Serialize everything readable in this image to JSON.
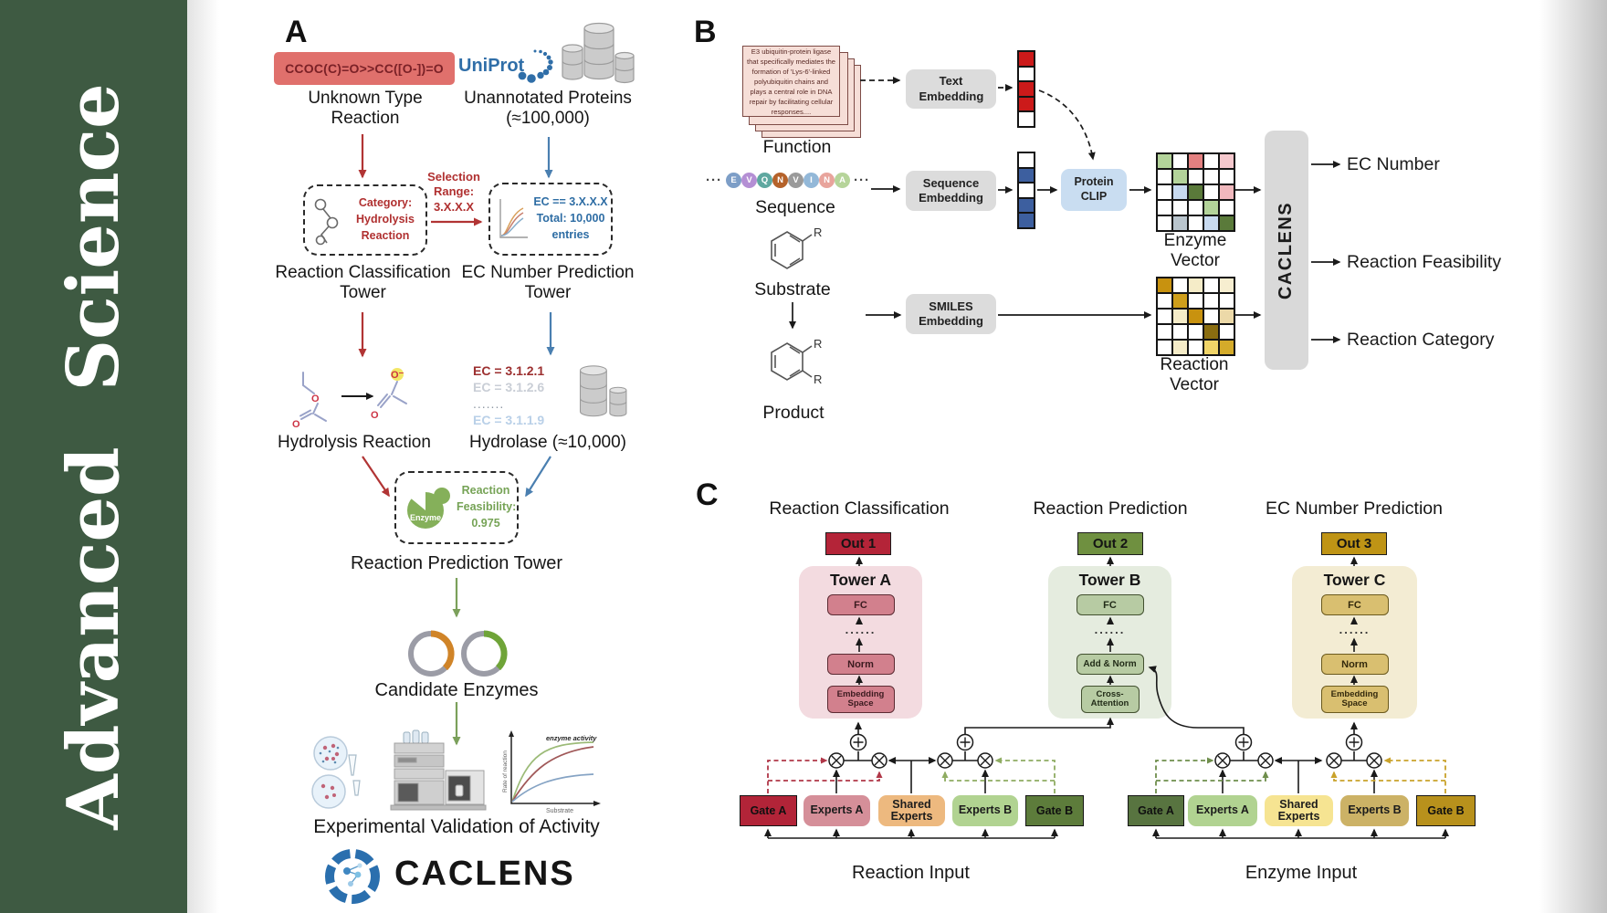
{
  "journal": {
    "name": "Advanced Science"
  },
  "panelA": {
    "label": "A",
    "smiles": "CCOC(C)=O>>CC([O-])=O",
    "unknown_reaction": "Unknown Type Reaction",
    "uniprot": "UniProt",
    "unannotated": "Unannotated Proteins (≈100,000)",
    "category_box": "Category: Hydrolysis Reaction",
    "selection": "Selection Range: 3.X.X.X",
    "ec_box_line1": "EC == 3.X.X.X",
    "ec_box_line2": "Total: 10,000",
    "ec_box_line3": "entries",
    "classification_tower": "Reaction Classification Tower",
    "prediction_tower": "EC Number Prediction Tower",
    "hydrolysis": "Hydrolysis Reaction",
    "ec_list": [
      "EC = 3.1.2.1",
      "EC = 3.1.2.6",
      ".......",
      "EC = 3.1.1.9"
    ],
    "hydrolase": "Hydrolase (≈10,000)",
    "enzyme": "Enzyme",
    "feasibility": "Reaction Feasibility: 0.975",
    "reaction_prediction_tower": "Reaction Prediction Tower",
    "candidate_enzymes": "Candidate Enzymes",
    "validation": "Experimental Validation of Activity",
    "brand": "CACLENS",
    "kinetics": {
      "annotation": "enzyme activity",
      "ylabel": "Rate of reaction",
      "xlabel": "Substrate"
    }
  },
  "panelB": {
    "label": "B",
    "function_card": "E3 ubiquitin-protein ligase that specifically mediates the formation of 'Lys-6'-linked polyubiquitin chains and plays a central role in DNA repair by facilitating cellular responses....",
    "function": "Function",
    "sequence_label": "Sequence",
    "dots": "···",
    "sequence": [
      {
        "letter": "E",
        "color": "#7d9ec7"
      },
      {
        "letter": "V",
        "color": "#b48fd4"
      },
      {
        "letter": "Q",
        "color": "#5fa8a0"
      },
      {
        "letter": "N",
        "color": "#b5622a"
      },
      {
        "letter": "V",
        "color": "#9a9a9a"
      },
      {
        "letter": "I",
        "color": "#93b8d8"
      },
      {
        "letter": "N",
        "color": "#e8a49c"
      },
      {
        "letter": "A",
        "color": "#b6d49a"
      }
    ],
    "text_embedding": "Text Embedding",
    "sequence_embedding": "Sequence Embedding",
    "smiles_embedding": "SMILES Embedding",
    "protein_clip": "Protein CLIP",
    "substrate": "Substrate",
    "product": "Product",
    "r_group": "R",
    "enzyme_vector_label": "Enzyme Vector",
    "reaction_vector_label": "Reaction Vector",
    "caclens_bar": "CACLENS",
    "outputs": [
      "EC Number",
      "Reaction Feasibility",
      "Reaction Category"
    ],
    "text_vector": [
      "#cc1a1a",
      "#ffffff",
      "#cc1a1a",
      "#cc1a1a",
      "#ffffff"
    ],
    "sequence_vector": [
      "#ffffff",
      "#3d5f9f",
      "#ffffff",
      "#3d5f9f",
      "#3d5f9f"
    ],
    "enzyme_vector": [
      [
        "#b3d39a",
        "#ffffff",
        "#e38080",
        "#ffffff",
        "#f5c8cd"
      ],
      [
        "#ffffff",
        "#b3d39a",
        "#ffffff",
        "#ffffff",
        "#ffffff"
      ],
      [
        "#ffffff",
        "#c8daf0",
        "#5a7a3a",
        "#ffffff",
        "#f0b8bd"
      ],
      [
        "#ffffff",
        "#ffffff",
        "#ffffff",
        "#b3d39a",
        "#ffffff"
      ],
      [
        "#ffffff",
        "#b9c5cd",
        "#ffffff",
        "#c8daf0",
        "#5a7a3a"
      ]
    ],
    "reaction_vector": [
      [
        "#c8920f",
        "#ffffff",
        "#f5ecc8",
        "#ffffff",
        "#f7eed0"
      ],
      [
        "#ffffff",
        "#cf9f1b",
        "#ffffff",
        "#ffffff",
        "#ffffff"
      ],
      [
        "#ffffff",
        "#f5ecc8",
        "#c8920f",
        "#ffffff",
        "#ecd9a8"
      ],
      [
        "#ffffff",
        "#ffffff",
        "#ffffff",
        "#8a6d10",
        "#ffffff"
      ],
      [
        "#ffffff",
        "#f5ecc8",
        "#ffffff",
        "#f0d468",
        "#d4ab2a"
      ]
    ]
  },
  "panelC": {
    "label": "C",
    "headings": [
      "Reaction Classification",
      "Reaction Prediction",
      "EC Number Prediction"
    ],
    "outs": [
      "Out 1",
      "Out 2",
      "Out 3"
    ],
    "towers": [
      {
        "title": "Tower A",
        "fc": "FC",
        "dots": "......",
        "norm": "Norm",
        "bottom": "Embedding Space"
      },
      {
        "title": "Tower B",
        "fc": "FC",
        "dots": "......",
        "norm": "Add & Norm",
        "bottom": "Cross-Attention"
      },
      {
        "title": "Tower C",
        "fc": "FC",
        "dots": "......",
        "norm": "Norm",
        "bottom": "Embedding Space"
      }
    ],
    "groups": [
      {
        "label": "Reaction Input",
        "gate_a": "Gate A",
        "experts_a": "Experts A",
        "shared": "Shared Experts",
        "experts_b": "Experts B",
        "gate_b": "Gate B"
      },
      {
        "label": "Enzyme Input",
        "gate_a": "Gate A",
        "experts_a": "Experts A",
        "shared": "Shared Experts",
        "experts_b": "Experts B",
        "gate_b": "Gate B"
      }
    ]
  },
  "colors": {
    "sidebar_green": "#3e5a42",
    "smiles_red_bg": "#e0706c",
    "accent_red": "#b13434",
    "accent_blue": "#4a7fb0",
    "accent_green": "#7ba05b",
    "out1_red": "#b42438",
    "out2_green": "#6f9040",
    "out3_gold": "#bf9415"
  }
}
